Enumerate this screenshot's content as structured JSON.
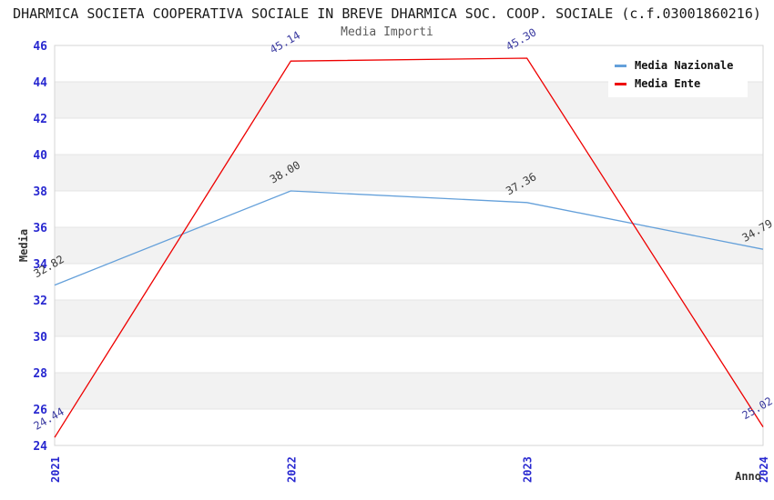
{
  "header": {
    "title": "DHARMICA SOCIETA COOPERATIVA SOCIALE IN BREVE DHARMICA SOC. COOP. SOCIALE (c.f.03001860216)",
    "subtitle": "Media Importi"
  },
  "legend": {
    "items": [
      {
        "label": "Media Nazionale",
        "color": "#64A0DA"
      },
      {
        "label": "Media Ente",
        "color": "#EE0000"
      }
    ]
  },
  "chart_data": {
    "type": "line",
    "title": "Media Importi",
    "xlabel": "Anno",
    "ylabel": "Media",
    "x_categories": [
      "2021",
      "2022",
      "2023",
      "2024"
    ],
    "ylim": [
      24,
      46
    ],
    "ytick_step": 2,
    "grid": true,
    "legend_position": "top-right",
    "series": [
      {
        "name": "Media Nazionale",
        "color": "#64A0DA",
        "values": [
          32.82,
          38.0,
          37.36,
          34.79
        ],
        "point_labels": [
          "32.82",
          "38.00",
          "37.36",
          "34.79"
        ],
        "label_color": "#3C3C3C"
      },
      {
        "name": "Media Ente",
        "color": "#EE0000",
        "values": [
          24.44,
          45.14,
          45.3,
          25.02
        ],
        "point_labels": [
          "24.44",
          "45.14",
          "45.30",
          "25.02"
        ],
        "label_color": "#3A3AA0"
      }
    ],
    "axis_tick_color": "#2828D0",
    "axis_title_color": "#333333",
    "stripe_colors": [
      "#FFFFFF",
      "#F2F2F2"
    ],
    "gridline_color": "#E4E4E4",
    "frame_color": "#D6D6D6"
  }
}
